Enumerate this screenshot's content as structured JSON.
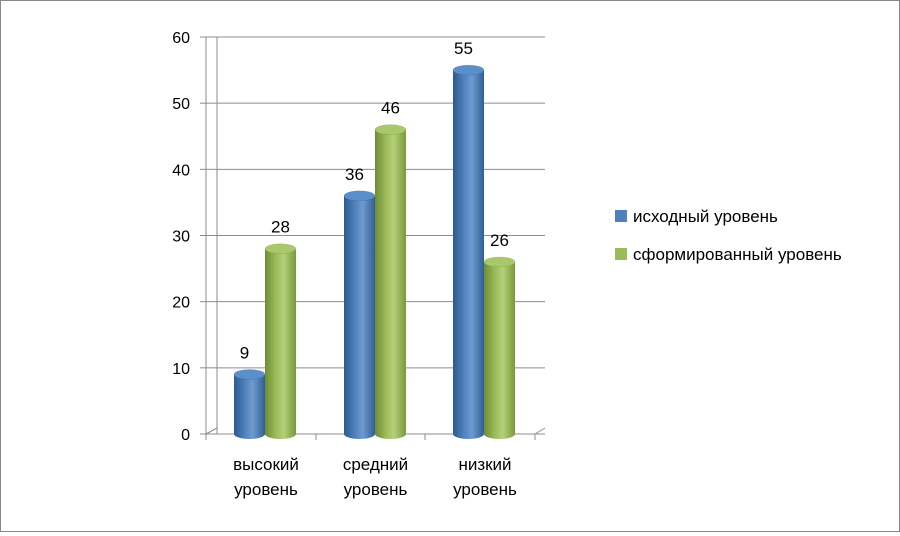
{
  "chart_data": {
    "type": "bar",
    "categories": [
      [
        "высокий",
        "уровень"
      ],
      [
        "средний",
        "уровень"
      ],
      [
        "низкий",
        "уровень"
      ]
    ],
    "series": [
      {
        "name": "исходный уровень",
        "values": [
          9,
          36,
          55
        ],
        "color": "#4f81bd"
      },
      {
        "name": "сформированный уровень",
        "values": [
          28,
          46,
          26
        ],
        "color": "#9bbb59"
      }
    ],
    "y_ticks": [
      0,
      10,
      20,
      30,
      40,
      50,
      60
    ],
    "ylim": [
      0,
      60
    ],
    "grid": true,
    "legend_position": "right",
    "style": "3d-cylinder"
  }
}
